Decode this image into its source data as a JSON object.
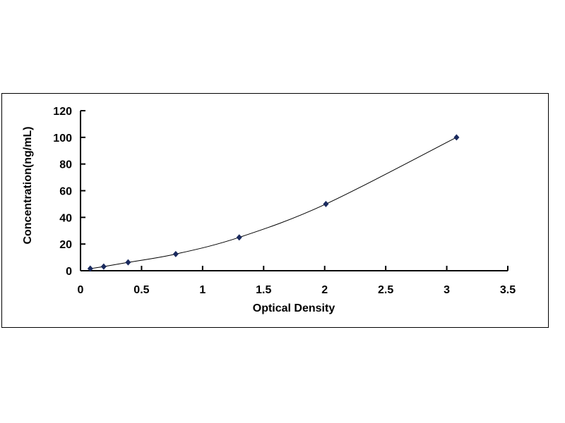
{
  "chart_data": {
    "type": "scatter",
    "title": "",
    "xlabel": "Optical Density",
    "ylabel": "Concentration(ng/mL)",
    "xlim": [
      0,
      3.5
    ],
    "ylim": [
      0,
      120
    ],
    "xticks": [
      "0",
      "0.5",
      "1",
      "1.5",
      "2",
      "2.5",
      "3",
      "3.5"
    ],
    "yticks": [
      "0",
      "20",
      "40",
      "60",
      "80",
      "100",
      "120"
    ],
    "grid": false,
    "legend": "none",
    "trendline": "smooth curve",
    "marker": "diamond",
    "marker_color": "#1a2a5e",
    "line_color": "#000000",
    "series": [
      {
        "x": [
          0.08,
          0.19,
          0.39,
          0.78,
          1.3,
          2.01,
          3.08
        ],
        "y": [
          1.56,
          3.12,
          6.25,
          12.5,
          25,
          50,
          100
        ]
      }
    ]
  }
}
